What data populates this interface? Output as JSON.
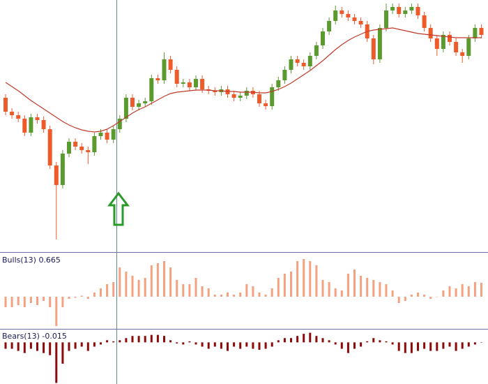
{
  "chart_data": [
    {
      "type": "candlestick",
      "up_color": "#5b9a2e",
      "down_color": "#ef5a2b",
      "ylim": [
        0,
        360
      ],
      "open": [
        220,
        200,
        195,
        190,
        170,
        192,
        188,
        175,
        123,
        95,
        140,
        157,
        150,
        145,
        142,
        165,
        170,
        160,
        175,
        190,
        220,
        207,
        212,
        215,
        248,
        245,
        275,
        260,
        240,
        242,
        235,
        247,
        232,
        230,
        228,
        232,
        225,
        220,
        223,
        230,
        225,
        212,
        208,
        235,
        245,
        260,
        275,
        270,
        265,
        280,
        295,
        315,
        330,
        345,
        340,
        335,
        330,
        325,
        305,
        275,
        320,
        345,
        350,
        340,
        345,
        350,
        338,
        320,
        305,
        290,
        310,
        300,
        285,
        280,
        305,
        320
      ],
      "high": [
        225,
        205,
        200,
        195,
        197,
        197,
        193,
        180,
        128,
        145,
        162,
        162,
        155,
        150,
        170,
        175,
        175,
        180,
        195,
        225,
        225,
        217,
        220,
        253,
        253,
        285,
        280,
        265,
        247,
        247,
        252,
        252,
        237,
        235,
        237,
        237,
        230,
        228,
        235,
        235,
        230,
        217,
        240,
        250,
        265,
        280,
        280,
        275,
        285,
        300,
        320,
        335,
        352,
        350,
        345,
        340,
        335,
        330,
        310,
        325,
        355,
        355,
        355,
        350,
        355,
        355,
        343,
        325,
        310,
        315,
        315,
        305,
        290,
        310,
        325,
        325
      ],
      "low": [
        195,
        190,
        185,
        165,
        165,
        183,
        170,
        118,
        17,
        90,
        135,
        145,
        140,
        125,
        137,
        160,
        155,
        155,
        170,
        185,
        202,
        202,
        207,
        210,
        240,
        240,
        255,
        235,
        235,
        230,
        230,
        227,
        225,
        223,
        223,
        220,
        215,
        215,
        218,
        220,
        207,
        203,
        203,
        230,
        240,
        255,
        265,
        260,
        260,
        275,
        290,
        310,
        325,
        335,
        330,
        325,
        320,
        300,
        268,
        270,
        315,
        340,
        335,
        335,
        340,
        333,
        315,
        300,
        280,
        285,
        295,
        280,
        270,
        275,
        300,
        305
      ],
      "close": [
        200,
        195,
        190,
        170,
        192,
        188,
        175,
        123,
        95,
        140,
        157,
        150,
        145,
        142,
        165,
        170,
        160,
        175,
        190,
        220,
        207,
        212,
        215,
        248,
        245,
        275,
        260,
        240,
        242,
        235,
        247,
        232,
        230,
        228,
        232,
        225,
        220,
        223,
        230,
        225,
        212,
        208,
        235,
        245,
        260,
        275,
        270,
        265,
        280,
        295,
        315,
        330,
        345,
        340,
        335,
        330,
        325,
        305,
        275,
        320,
        345,
        350,
        340,
        345,
        350,
        338,
        320,
        305,
        290,
        310,
        300,
        285,
        280,
        305,
        320,
        310
      ],
      "ma": {
        "color": "#c0392b",
        "values": [
          242,
          236,
          230,
          223,
          216,
          210,
          204,
          198,
          192,
          186,
          181,
          177,
          174,
          172,
          171,
          172,
          175,
          180,
          186,
          192,
          198,
          203,
          207,
          212,
          217,
          222,
          226,
          228,
          229,
          230,
          231,
          231,
          231,
          230,
          230,
          229,
          229,
          228,
          228,
          228,
          227,
          227,
          229,
          232,
          236,
          241,
          247,
          253,
          259,
          266,
          273,
          281,
          289,
          296,
          302,
          307,
          311,
          315,
          317,
          318,
          319,
          320,
          318,
          316,
          314,
          312,
          311,
          310,
          309,
          308,
          307,
          306,
          306,
          306,
          306,
          306
        ]
      }
    },
    {
      "type": "bar",
      "title": "Bulls(13) 0.665",
      "color": "#f5a17f",
      "ylim": [
        -1.5,
        2.1
      ],
      "values": [
        -0.5,
        -0.5,
        -0.4,
        -0.5,
        -0.3,
        -0.4,
        -0.2,
        -0.5,
        -1.4,
        -0.5,
        -0.1,
        -0.05,
        0.05,
        -0.1,
        0.2,
        0.4,
        0.6,
        0.7,
        1.4,
        1.2,
        1.0,
        0.8,
        0.9,
        1.5,
        1.6,
        1.7,
        1.4,
        0.8,
        0.6,
        0.6,
        0.9,
        0.5,
        0.4,
        0.1,
        0.1,
        0.2,
        0.1,
        0.2,
        0.6,
        0.5,
        0.2,
        0.1,
        0.4,
        0.9,
        1.1,
        1.2,
        1.7,
        1.8,
        1.7,
        1.5,
        0.8,
        0.7,
        0.4,
        0.3,
        1.1,
        1.3,
        1.0,
        0.9,
        0.8,
        0.7,
        0.6,
        0.3,
        -0.3,
        -0.2,
        0.1,
        0.2,
        0.1,
        -0.1,
        0.0,
        0.3,
        0.5,
        0.4,
        0.6,
        0.5,
        0.7,
        0.665
      ]
    },
    {
      "type": "bar",
      "title": "Bears(13) -0.015",
      "color": "#8b0a0a",
      "ylim": [
        -1.95,
        0.6
      ],
      "values": [
        -0.3,
        -0.3,
        -0.4,
        -0.5,
        -0.3,
        -0.4,
        -0.5,
        -0.6,
        -1.9,
        -1.0,
        -0.4,
        -0.3,
        -0.2,
        -0.4,
        -0.2,
        -0.1,
        0.1,
        0.05,
        0.1,
        0.2,
        0.3,
        0.3,
        0.3,
        0.35,
        0.35,
        0.3,
        0.1,
        -0.05,
        -0.1,
        0.05,
        -0.1,
        -0.2,
        -0.3,
        -0.2,
        -0.3,
        -0.4,
        -0.2,
        -0.3,
        -0.2,
        -0.3,
        -0.35,
        -0.3,
        -0.2,
        0.1,
        0.2,
        0.2,
        0.3,
        0.4,
        0.45,
        0.3,
        0.2,
        0.1,
        -0.1,
        -0.3,
        -0.5,
        -0.3,
        -0.2,
        0.05,
        0.2,
        0.1,
        0.05,
        -0.1,
        -0.4,
        -0.5,
        -0.5,
        -0.4,
        -0.3,
        -0.4,
        -0.4,
        -0.3,
        -0.2,
        -0.4,
        -0.3,
        -0.2,
        -0.1,
        -0.015
      ]
    }
  ]
}
